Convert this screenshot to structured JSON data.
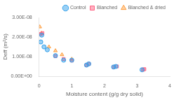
{
  "chart_data": {
    "type": "scatter",
    "xlabel": "Moisture content (g/g dry solid)",
    "ylabel": "Deff (m²/s)",
    "series": [
      {
        "name": "Control",
        "marker": "circle",
        "x": [
          0.05,
          0.08,
          0.15,
          0.25,
          0.5,
          0.75,
          1.0,
          1.45,
          1.52,
          2.28,
          2.35,
          3.15
        ],
        "values": [
          1.75e-08,
          2.1e-08,
          1.5e-08,
          1.35e-08,
          1.05e-08,
          8.2e-09,
          8.2e-09,
          5.7e-09,
          6.3e-09,
          4.7e-09,
          5e-09,
          3.3e-09
        ]
      },
      {
        "name": "Blanched",
        "marker": "square",
        "x": [
          0.05,
          0.1,
          0.5,
          0.75,
          1.0,
          1.45,
          1.52,
          2.28,
          2.38,
          3.18,
          3.22
        ],
        "values": [
          2.15e-08,
          2.2e-08,
          1.02e-08,
          8.8e-09,
          8e-09,
          5.7e-09,
          6.3e-09,
          4.7e-09,
          5e-09,
          3.3e-09,
          3.6e-09
        ]
      },
      {
        "name": "Blanched & dried",
        "marker": "triangle",
        "x": [
          0.02,
          0.07,
          0.3,
          0.5,
          0.7,
          1.0
        ],
        "values": [
          2.52e-08,
          2.2e-08,
          1.5e-08,
          1.3e-08,
          1.1e-08,
          8.7e-09
        ]
      }
    ],
    "xlim": [
      0,
      4
    ],
    "xticks": [
      0,
      1,
      2,
      3,
      4
    ],
    "ylim": [
      0,
      3e-08
    ],
    "yticks": [
      {
        "value": 0.0,
        "label": "0.00E+00"
      },
      {
        "value": 1e-08,
        "label": "1.00E-08"
      },
      {
        "value": 2e-08,
        "label": "2.00E-08"
      },
      {
        "value": 3e-08,
        "label": "3.00E-08"
      }
    ],
    "grid": false,
    "legend": "upper right"
  }
}
